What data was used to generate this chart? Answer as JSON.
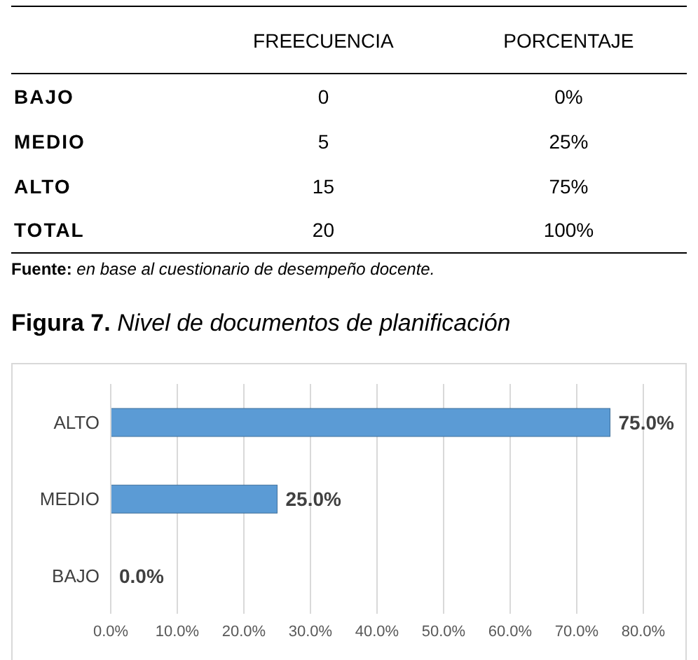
{
  "chart_data": [
    {
      "type": "other",
      "categories": [
        "BAJO",
        "MEDIO",
        "ALTO",
        "TOTAL"
      ],
      "series": [
        {
          "name": "FREECUENCIA",
          "values": [
            0,
            5,
            15,
            20
          ]
        },
        {
          "name": "PORCENTAJE",
          "values": [
            0,
            25,
            75,
            100
          ],
          "value_labels": [
            "0%",
            "25%",
            "75%",
            "100%"
          ]
        }
      ],
      "data_labels": true,
      "annotations": [
        "Fuente: en base al cuestionario de desempeño docente."
      ]
    },
    {
      "type": "bar",
      "orientation": "horizontal",
      "title": "Figura 7. Nivel de documentos de planificación",
      "categories": [
        "ALTO",
        "MEDIO",
        "BAJO"
      ],
      "values": [
        75,
        25,
        0
      ],
      "color": "#5b9bd5",
      "value_labels": [
        "75.0%",
        "25.0%",
        "0.0%"
      ],
      "xlim": [
        0,
        80
      ],
      "xticks": [
        {
          "value": 0,
          "label": "0.0%"
        },
        {
          "value": 10,
          "label": "10.0%"
        },
        {
          "value": 20,
          "label": "20.0%"
        },
        {
          "value": 30,
          "label": "30.0%"
        },
        {
          "value": 40,
          "label": "40.0%"
        },
        {
          "value": 50,
          "label": "50.0%"
        },
        {
          "value": 60,
          "label": "60.0%"
        },
        {
          "value": 70,
          "label": "70.0%"
        },
        {
          "value": 80,
          "label": "80.0%"
        }
      ],
      "grid": "x",
      "legend": false
    }
  ]
}
